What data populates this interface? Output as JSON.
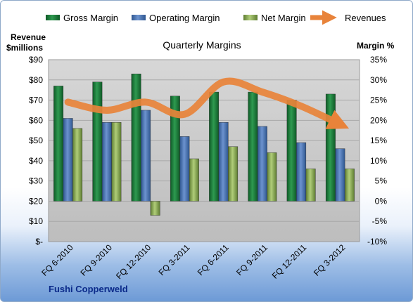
{
  "chart_data": {
    "type": "bar",
    "title": "Quarterly Margins",
    "categories": [
      "FQ 6-2010",
      "FQ 9-2010",
      "FQ 12-2010",
      "FQ 3-2011",
      "FQ 6-2011",
      "FQ 9-2011",
      "FQ 12-2011",
      "FQ 3-2012"
    ],
    "series": [
      {
        "name": "Gross Margin",
        "axis": "right",
        "unit": "%",
        "values": [
          28.5,
          29.5,
          31.5,
          26,
          27,
          27,
          25,
          26.5
        ],
        "color": "#1f7a3a"
      },
      {
        "name": "Operating Margin",
        "axis": "right",
        "unit": "%",
        "values": [
          20.5,
          19.5,
          22.5,
          16,
          19.5,
          18.5,
          14.5,
          13
        ],
        "color": "#4a74b8"
      },
      {
        "name": "Net Margin",
        "axis": "right",
        "unit": "%",
        "values": [
          18,
          19.5,
          -3.5,
          10.5,
          13.5,
          12,
          8,
          8
        ],
        "color": "#8fb05a"
      },
      {
        "name": "Revenues",
        "axis": "left",
        "unit": "$millions",
        "type": "line",
        "values": [
          69,
          65,
          69,
          63,
          79,
          74,
          67,
          58
        ],
        "color": "#e8833a"
      }
    ],
    "y_left": {
      "label_line1": "Revenue",
      "label_line2": "$millions",
      "range": [
        0,
        90
      ],
      "ticks": [
        "$-",
        "$10",
        "$20",
        "$30",
        "$40",
        "$50",
        "$60",
        "$70",
        "$80",
        "$90"
      ]
    },
    "y_right": {
      "label": "Margin %",
      "range": [
        -10,
        35
      ],
      "ticks": [
        "-10%",
        "-5%",
        "0%",
        "5%",
        "10%",
        "15%",
        "20%",
        "25%",
        "30%",
        "35%"
      ]
    },
    "legend_position": "top",
    "grid": true
  },
  "footer": {
    "company": "Fushi Copperweld"
  }
}
